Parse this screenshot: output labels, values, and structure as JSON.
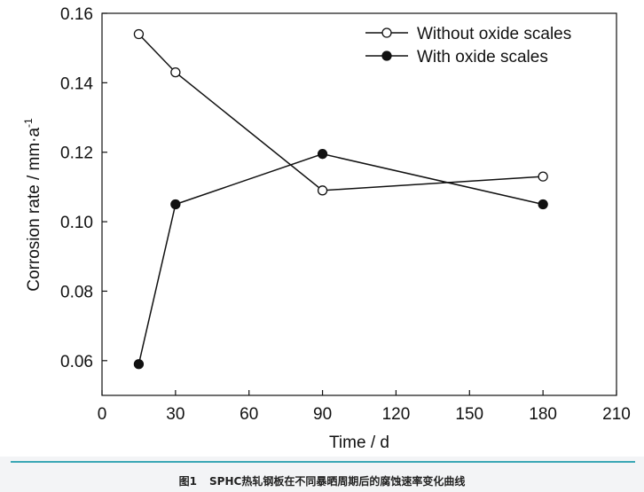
{
  "chart_data": {
    "type": "line",
    "title": "",
    "xlabel": "Time / d",
    "ylabel": {
      "base": "Corrosion rate / mm·a",
      "superscript": "-1"
    },
    "xlim": [
      0,
      210
    ],
    "ylim": [
      0.05,
      0.16
    ],
    "xticks": [
      0,
      30,
      60,
      90,
      120,
      150,
      180,
      210
    ],
    "yticks": [
      0.06,
      0.08,
      0.1,
      0.12,
      0.14,
      0.16
    ],
    "xtick_labels": [
      "0",
      "30",
      "60",
      "90",
      "120",
      "150",
      "180",
      "210"
    ],
    "ytick_labels": [
      "0.06",
      "0.08",
      "0.10",
      "0.12",
      "0.14",
      "0.16"
    ],
    "grid": false,
    "legend_position": "top-right",
    "series": [
      {
        "name": "Without oxide scales",
        "marker": "open-circle",
        "x": [
          15,
          30,
          90,
          180
        ],
        "y": [
          0.154,
          0.143,
          0.109,
          0.113
        ]
      },
      {
        "name": "With oxide scales",
        "marker": "filled-circle",
        "x": [
          15,
          30,
          90,
          180
        ],
        "y": [
          0.059,
          0.105,
          0.1195,
          0.105
        ]
      }
    ]
  },
  "caption": {
    "figure_number": "图1",
    "text": "SPHC热轧钢板在不同暴晒周期后的腐蚀速率变化曲线"
  },
  "colors": {
    "accent_line": "#3aa7b5",
    "caption_bg": "#f3f4f6",
    "ink": "#111111"
  }
}
